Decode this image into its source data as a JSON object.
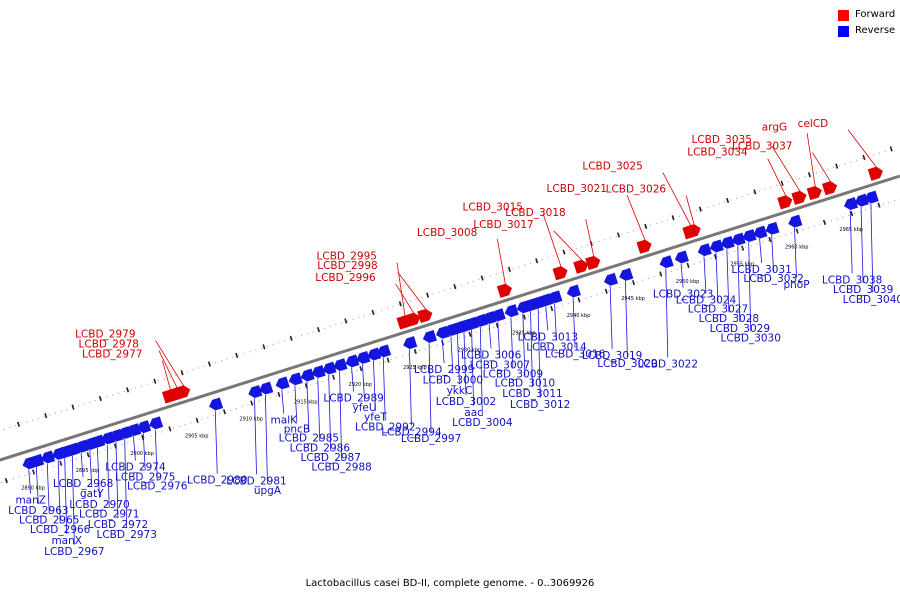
{
  "legend": [
    {
      "label": "Forward",
      "color": "#ff0000"
    },
    {
      "label": "Reverse",
      "color": "#0000ff"
    }
  ],
  "caption": "Lactobacillus casei BD-II, complete genome. - 0..3069926",
  "colors": {
    "forward": "#e00000",
    "reverse": "#1515e0",
    "forward_text": "#cc0000",
    "reverse_text": "#1010c0",
    "backbone": "#777777"
  },
  "chart_data": {
    "type": "genome-map",
    "axis_unit": "kbp",
    "axis_range_kbp": [
      2888,
      2968
    ],
    "ticks": [
      {
        "kbp": 2890,
        "label": "2890 kbp"
      },
      {
        "kbp": 2895,
        "label": "2895 kbp"
      },
      {
        "kbp": 2900,
        "label": "2900 kbp"
      },
      {
        "kbp": 2905,
        "label": "2905 kbp"
      },
      {
        "kbp": 2910,
        "label": "2910 kbp"
      },
      {
        "kbp": 2915,
        "label": "2915 kbp"
      },
      {
        "kbp": 2920,
        "label": "2920 kbp"
      },
      {
        "kbp": 2925,
        "label": "2925 kbp"
      },
      {
        "kbp": 2930,
        "label": "2930 kbp"
      },
      {
        "kbp": 2935,
        "label": "2935 kbp"
      },
      {
        "kbp": 2940,
        "label": "2940 kbp"
      },
      {
        "kbp": 2945,
        "label": "2945 kbp"
      },
      {
        "kbp": 2950,
        "label": "2950 kbp"
      },
      {
        "kbp": 2955,
        "label": "2955 kbp"
      },
      {
        "kbp": 2960,
        "label": "2960 kbp"
      },
      {
        "kbp": 2965,
        "label": "2965 kbp"
      }
    ],
    "forward_genes": [
      {
        "name": "LCBD_2977",
        "kbp": 2903.9
      },
      {
        "name": "LCBD_2978",
        "kbp": 2904.5
      },
      {
        "name": "LCBD_2979",
        "kbp": 2905.1
      },
      {
        "name": "LCBD_2995",
        "kbp": 2925.4
      },
      {
        "name": "LCBD_2996",
        "kbp": 2926.2
      },
      {
        "name": "LCBD_2998",
        "kbp": 2927.3
      },
      {
        "name": "LCBD_3008",
        "kbp": 2934.6
      },
      {
        "name": "LCBD_3015",
        "kbp": 2939.7
      },
      {
        "name": "LCBD_3017",
        "kbp": 2941.6
      },
      {
        "name": "LCBD_3018",
        "kbp": 2942.7
      },
      {
        "name": "LCBD_3021",
        "kbp": 2947.4
      },
      {
        "name": "LCBD_3025",
        "kbp": 2951.6
      },
      {
        "name": "LCBD_3026",
        "kbp": 2951.9
      },
      {
        "name": "LCBD_3034",
        "kbp": 2960.3
      },
      {
        "name": "LCBD_3035",
        "kbp": 2961.6
      },
      {
        "name": "argG",
        "kbp": 2963.0
      },
      {
        "name": "LCBD_3037",
        "kbp": 2964.4
      },
      {
        "name": "celCD",
        "kbp": 2968.6
      }
    ],
    "reverse_genes": [
      {
        "name": "manZ",
        "kbp": 2890.3
      },
      {
        "name": "LCBD_2963",
        "kbp": 2891.0
      },
      {
        "name": "LCBD_2965",
        "kbp": 2892.0
      },
      {
        "name": "LCBD_2966",
        "kbp": 2893.0
      },
      {
        "name": "manX",
        "kbp": 2893.6
      },
      {
        "name": "LCBD_2967",
        "kbp": 2894.3
      },
      {
        "name": "LCBD_2968",
        "kbp": 2895.1
      },
      {
        "name": "gatY",
        "kbp": 2895.9
      },
      {
        "name": "LCBD_2970",
        "kbp": 2896.6
      },
      {
        "name": "LCBD_2971",
        "kbp": 2897.5
      },
      {
        "name": "LCBD_2972",
        "kbp": 2898.3
      },
      {
        "name": "LCBD_2973",
        "kbp": 2899.1
      },
      {
        "name": "LCBD_2974",
        "kbp": 2899.9
      },
      {
        "name": "LCBD_2975",
        "kbp": 2900.8
      },
      {
        "name": "LCBD_2976",
        "kbp": 2901.9
      },
      {
        "name": "LCBD_2980",
        "kbp": 2907.4
      },
      {
        "name": "LCBD_2981",
        "kbp": 2911.0
      },
      {
        "name": "upgA",
        "kbp": 2912.0
      },
      {
        "name": "malK",
        "kbp": 2913.5
      },
      {
        "name": "pncB",
        "kbp": 2914.7
      },
      {
        "name": "LCBD_2985",
        "kbp": 2915.8
      },
      {
        "name": "LCBD_2986",
        "kbp": 2916.8
      },
      {
        "name": "LCBD_2987",
        "kbp": 2917.8
      },
      {
        "name": "LCBD_2988",
        "kbp": 2918.8
      },
      {
        "name": "LCBD_2989",
        "kbp": 2919.9
      },
      {
        "name": "yfeU",
        "kbp": 2920.9
      },
      {
        "name": "yfeT",
        "kbp": 2921.9
      },
      {
        "name": "LCBD_2992",
        "kbp": 2922.8
      },
      {
        "name": "LCBD_2994",
        "kbp": 2925.2
      },
      {
        "name": "LCBD_2997",
        "kbp": 2927.0
      },
      {
        "name": "LCBD_2999",
        "kbp": 2928.2
      },
      {
        "name": "LCBD_3000",
        "kbp": 2929.0
      },
      {
        "name": "ykkC",
        "kbp": 2929.6
      },
      {
        "name": "LCBD_3002",
        "kbp": 2930.2
      },
      {
        "name": "aac",
        "kbp": 2930.9
      },
      {
        "name": "LCBD_3004",
        "kbp": 2931.7
      },
      {
        "name": "LCBD_3006",
        "kbp": 2932.5
      },
      {
        "name": "LCBD_3007",
        "kbp": 2933.3
      },
      {
        "name": "LCBD_3009",
        "kbp": 2934.5
      },
      {
        "name": "LCBD_3010",
        "kbp": 2935.6
      },
      {
        "name": "LCBD_3011",
        "kbp": 2936.3
      },
      {
        "name": "LCBD_3012",
        "kbp": 2937.0
      },
      {
        "name": "LCBD_3013",
        "kbp": 2937.7
      },
      {
        "name": "LCBD_3014",
        "kbp": 2938.5
      },
      {
        "name": "LCBD_3016",
        "kbp": 2940.2
      },
      {
        "name": "LCBD_3019",
        "kbp": 2943.6
      },
      {
        "name": "LCBD_3020",
        "kbp": 2945.0
      },
      {
        "name": "LCBD_3022",
        "kbp": 2948.7
      },
      {
        "name": "LCBD_3023",
        "kbp": 2950.1
      },
      {
        "name": "LCBD_3024",
        "kbp": 2952.2
      },
      {
        "name": "LCBD_3027",
        "kbp": 2953.3
      },
      {
        "name": "LCBD_3028",
        "kbp": 2954.3
      },
      {
        "name": "LCBD_3029",
        "kbp": 2955.3
      },
      {
        "name": "LCBD_3030",
        "kbp": 2956.3
      },
      {
        "name": "LCBD_3031",
        "kbp": 2957.3
      },
      {
        "name": "LCBD_3032",
        "kbp": 2958.4
      },
      {
        "name": "phoP",
        "kbp": 2960.5
      },
      {
        "name": "LCBD_3038",
        "kbp": 2965.6
      },
      {
        "name": "LCBD_3039",
        "kbp": 2966.6
      },
      {
        "name": "LCBD_3040",
        "kbp": 2967.5
      }
    ]
  }
}
